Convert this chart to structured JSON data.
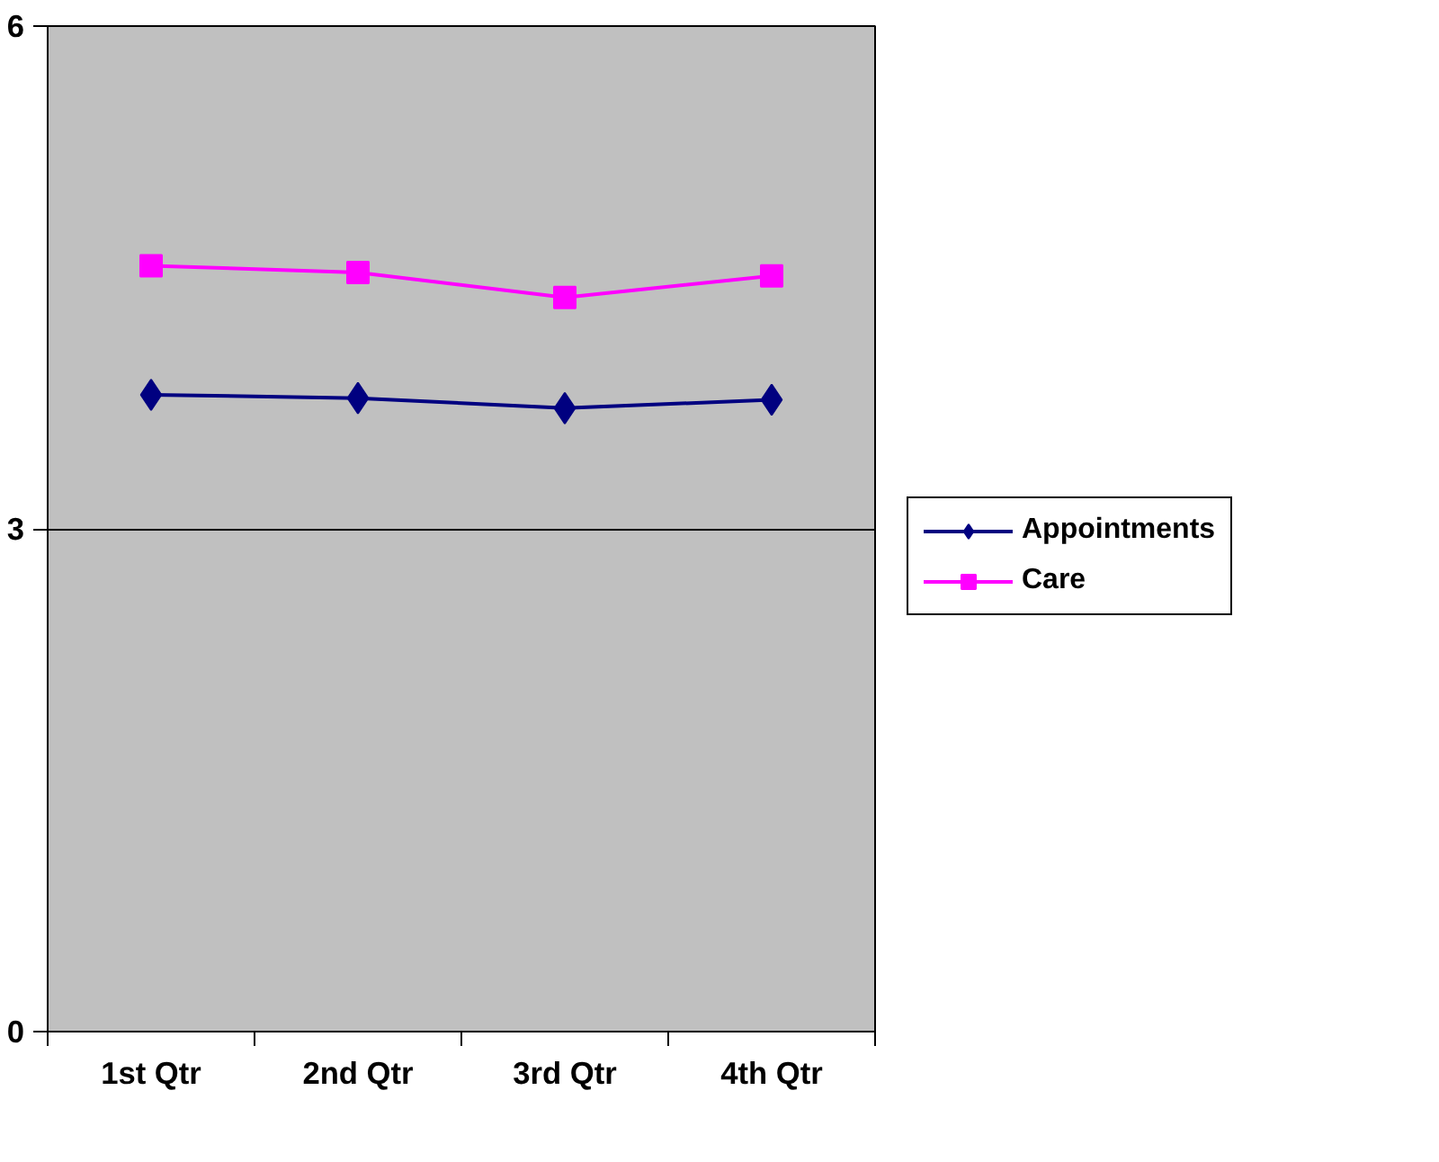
{
  "chart_data": {
    "type": "line",
    "categories": [
      "1st Qtr",
      "2nd Qtr",
      "3rd Qtr",
      "4th Qtr"
    ],
    "series": [
      {
        "name": "Appointments",
        "color": "#000080",
        "values": [
          3.8,
          3.78,
          3.72,
          3.77
        ],
        "marker": "diamond"
      },
      {
        "name": "Care",
        "color": "#ff00ff",
        "values": [
          4.57,
          4.53,
          4.38,
          4.51
        ],
        "marker": "square"
      }
    ],
    "ylim": [
      0,
      6
    ],
    "yticks": [
      0,
      3,
      6
    ],
    "grid": "y",
    "legend": "right",
    "line_style": "solid"
  }
}
